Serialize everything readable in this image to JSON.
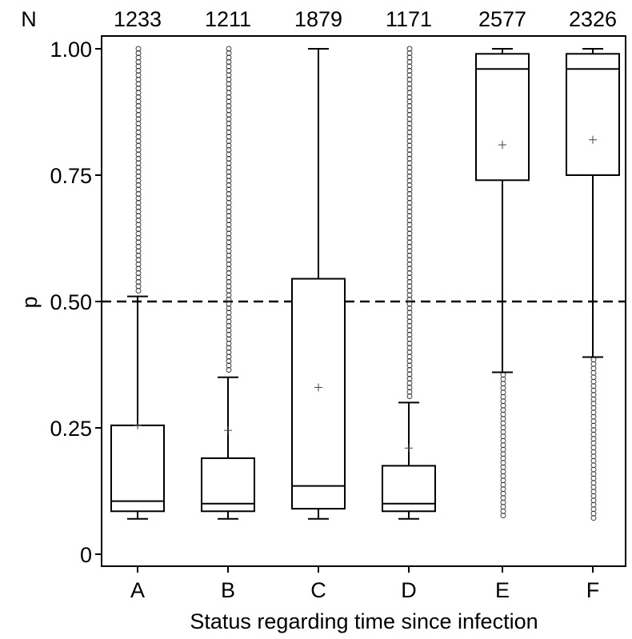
{
  "chart_data": {
    "type": "boxplot",
    "title": "",
    "xlabel": "Status regarding time since infection",
    "ylabel": "p",
    "ylim": [
      0,
      1
    ],
    "yticks": [
      {
        "value": 0,
        "label": "0"
      },
      {
        "value": 0.25,
        "label": "0.25"
      },
      {
        "value": 0.5,
        "label": "0.50"
      },
      {
        "value": 0.75,
        "label": "0.75"
      },
      {
        "value": 1,
        "label": "1.00"
      }
    ],
    "n_header": "N",
    "reference_line": 0.5,
    "grid": false,
    "categories": [
      "A",
      "B",
      "C",
      "D",
      "E",
      "F"
    ],
    "n": [
      "1233",
      "1211",
      "1879",
      "1171",
      "2577",
      "2326"
    ],
    "boxes": [
      {
        "whisker_low": 0.07,
        "q1": 0.085,
        "median": 0.105,
        "q3": 0.255,
        "whisker_high": 0.51,
        "mean": 0.255,
        "outliers": [
          0.52,
          1.0
        ]
      },
      {
        "whisker_low": 0.07,
        "q1": 0.085,
        "median": 0.1,
        "q3": 0.19,
        "whisker_high": 0.35,
        "mean": 0.245,
        "outliers": [
          0.36,
          1.0
        ]
      },
      {
        "whisker_low": 0.07,
        "q1": 0.09,
        "median": 0.135,
        "q3": 0.545,
        "whisker_high": 1.0,
        "mean": 0.33,
        "outliers": []
      },
      {
        "whisker_low": 0.07,
        "q1": 0.085,
        "median": 0.1,
        "q3": 0.175,
        "whisker_high": 0.3,
        "mean": 0.21,
        "outliers": [
          0.31,
          1.0
        ]
      },
      {
        "whisker_low": 0.36,
        "q1": 0.74,
        "median": 0.96,
        "q3": 0.99,
        "whisker_high": 1.0,
        "mean": 0.81,
        "outliers": [
          0.07,
          0.355
        ]
      },
      {
        "whisker_low": 0.39,
        "q1": 0.75,
        "median": 0.96,
        "q3": 0.99,
        "whisker_high": 1.0,
        "mean": 0.82,
        "outliers": [
          0.07,
          0.385
        ]
      }
    ]
  }
}
